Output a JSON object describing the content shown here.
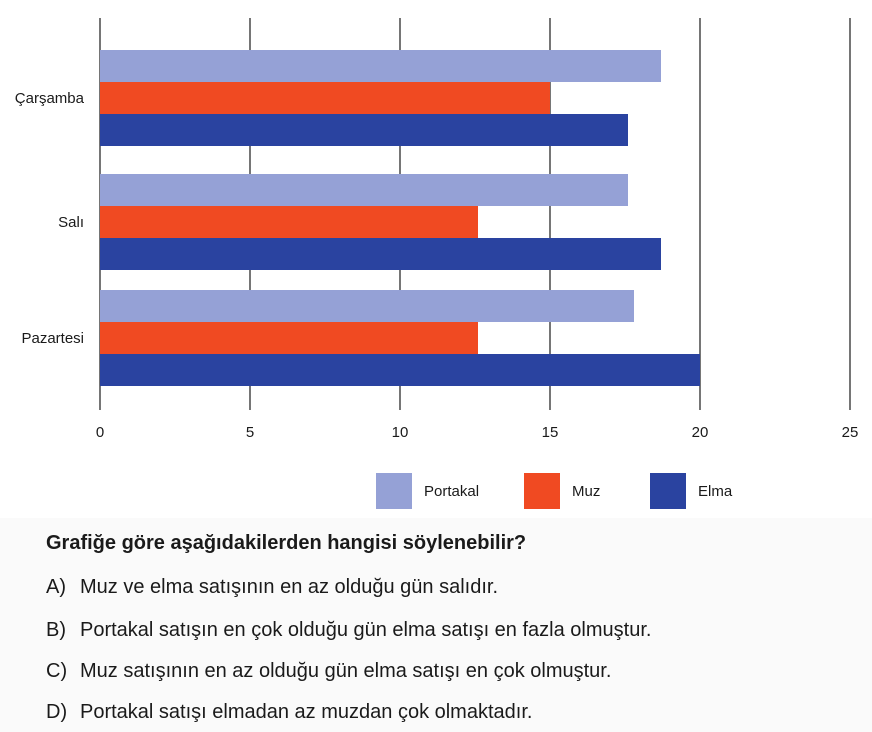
{
  "chart_data": {
    "type": "bar",
    "orientation": "horizontal",
    "categories": [
      "Çarşamba",
      "Salı",
      "Pazartesi"
    ],
    "series": [
      {
        "name": "Portakal",
        "color": "#95a1d6",
        "values": [
          18.7,
          17.6,
          17.8
        ]
      },
      {
        "name": "Muz",
        "color": "#f04a22",
        "values": [
          15,
          12.6,
          12.6
        ]
      },
      {
        "name": "Elma",
        "color": "#2a43a0",
        "values": [
          17.6,
          18.7,
          20
        ]
      }
    ],
    "xlim": [
      0,
      25
    ],
    "xticks": [
      "0",
      "5",
      "10",
      "15",
      "20",
      "25"
    ],
    "grid": true,
    "legend_position": "bottom"
  },
  "legend": [
    {
      "label": "Portakal",
      "color": "#95a1d6"
    },
    {
      "label": "Muz",
      "color": "#f04a22"
    },
    {
      "label": "Elma",
      "color": "#2a43a0"
    }
  ],
  "question": "Grafiğe göre aşağıdakilerden hangisi söylenebilir?",
  "options": [
    {
      "letter": "A)",
      "text": "Muz ve elma satışının en az olduğu gün salıdır."
    },
    {
      "letter": "B)",
      "text": "Portakal satışın en çok olduğu gün elma satışı en fazla olmuştur."
    },
    {
      "letter": "C)",
      "text": "Muz satışının en az olduğu gün elma satışı en çok olmuştur."
    },
    {
      "letter": "D)",
      "text": "Portakal satışı elmadan az muzdan çok olmaktadır."
    }
  ]
}
